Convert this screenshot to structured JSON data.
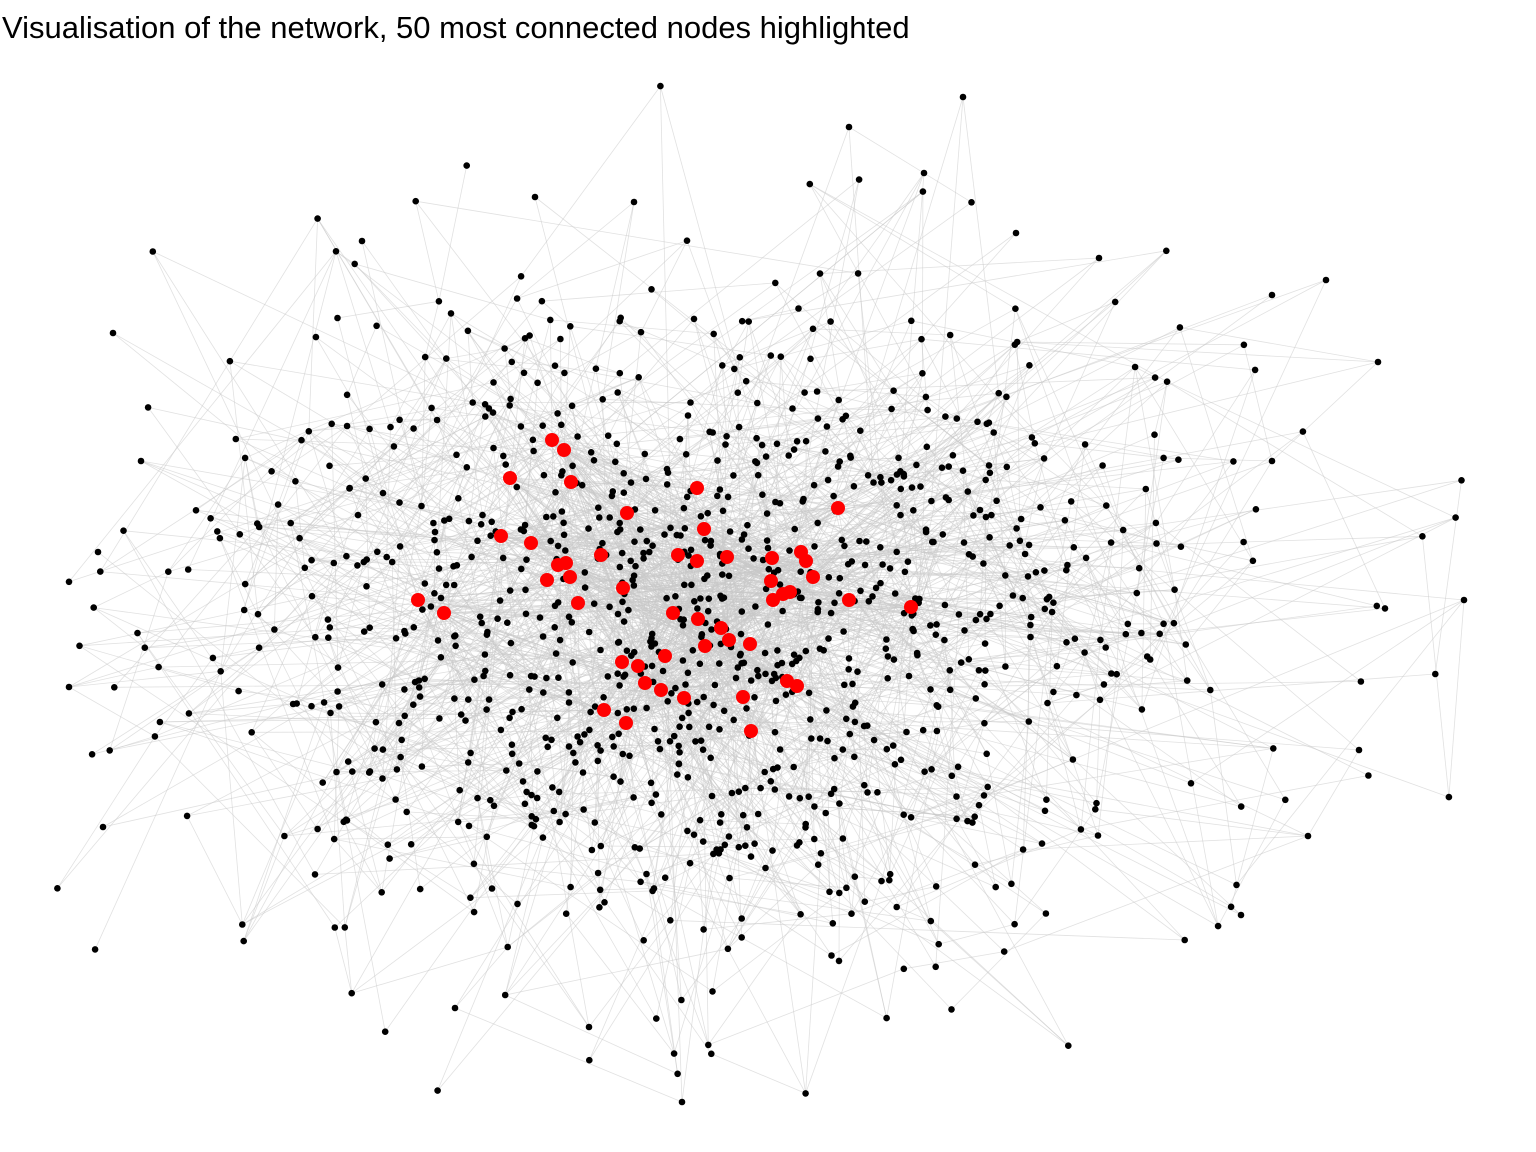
{
  "title": "Visualisation of the network, 50 most connected nodes highlighted",
  "colors": {
    "background": "#ffffff",
    "edge": "#c8c8c8",
    "node": "#000000",
    "highlight": "#ff0000",
    "title": "#000000"
  },
  "network": {
    "highlighted_count": 50
  }
}
